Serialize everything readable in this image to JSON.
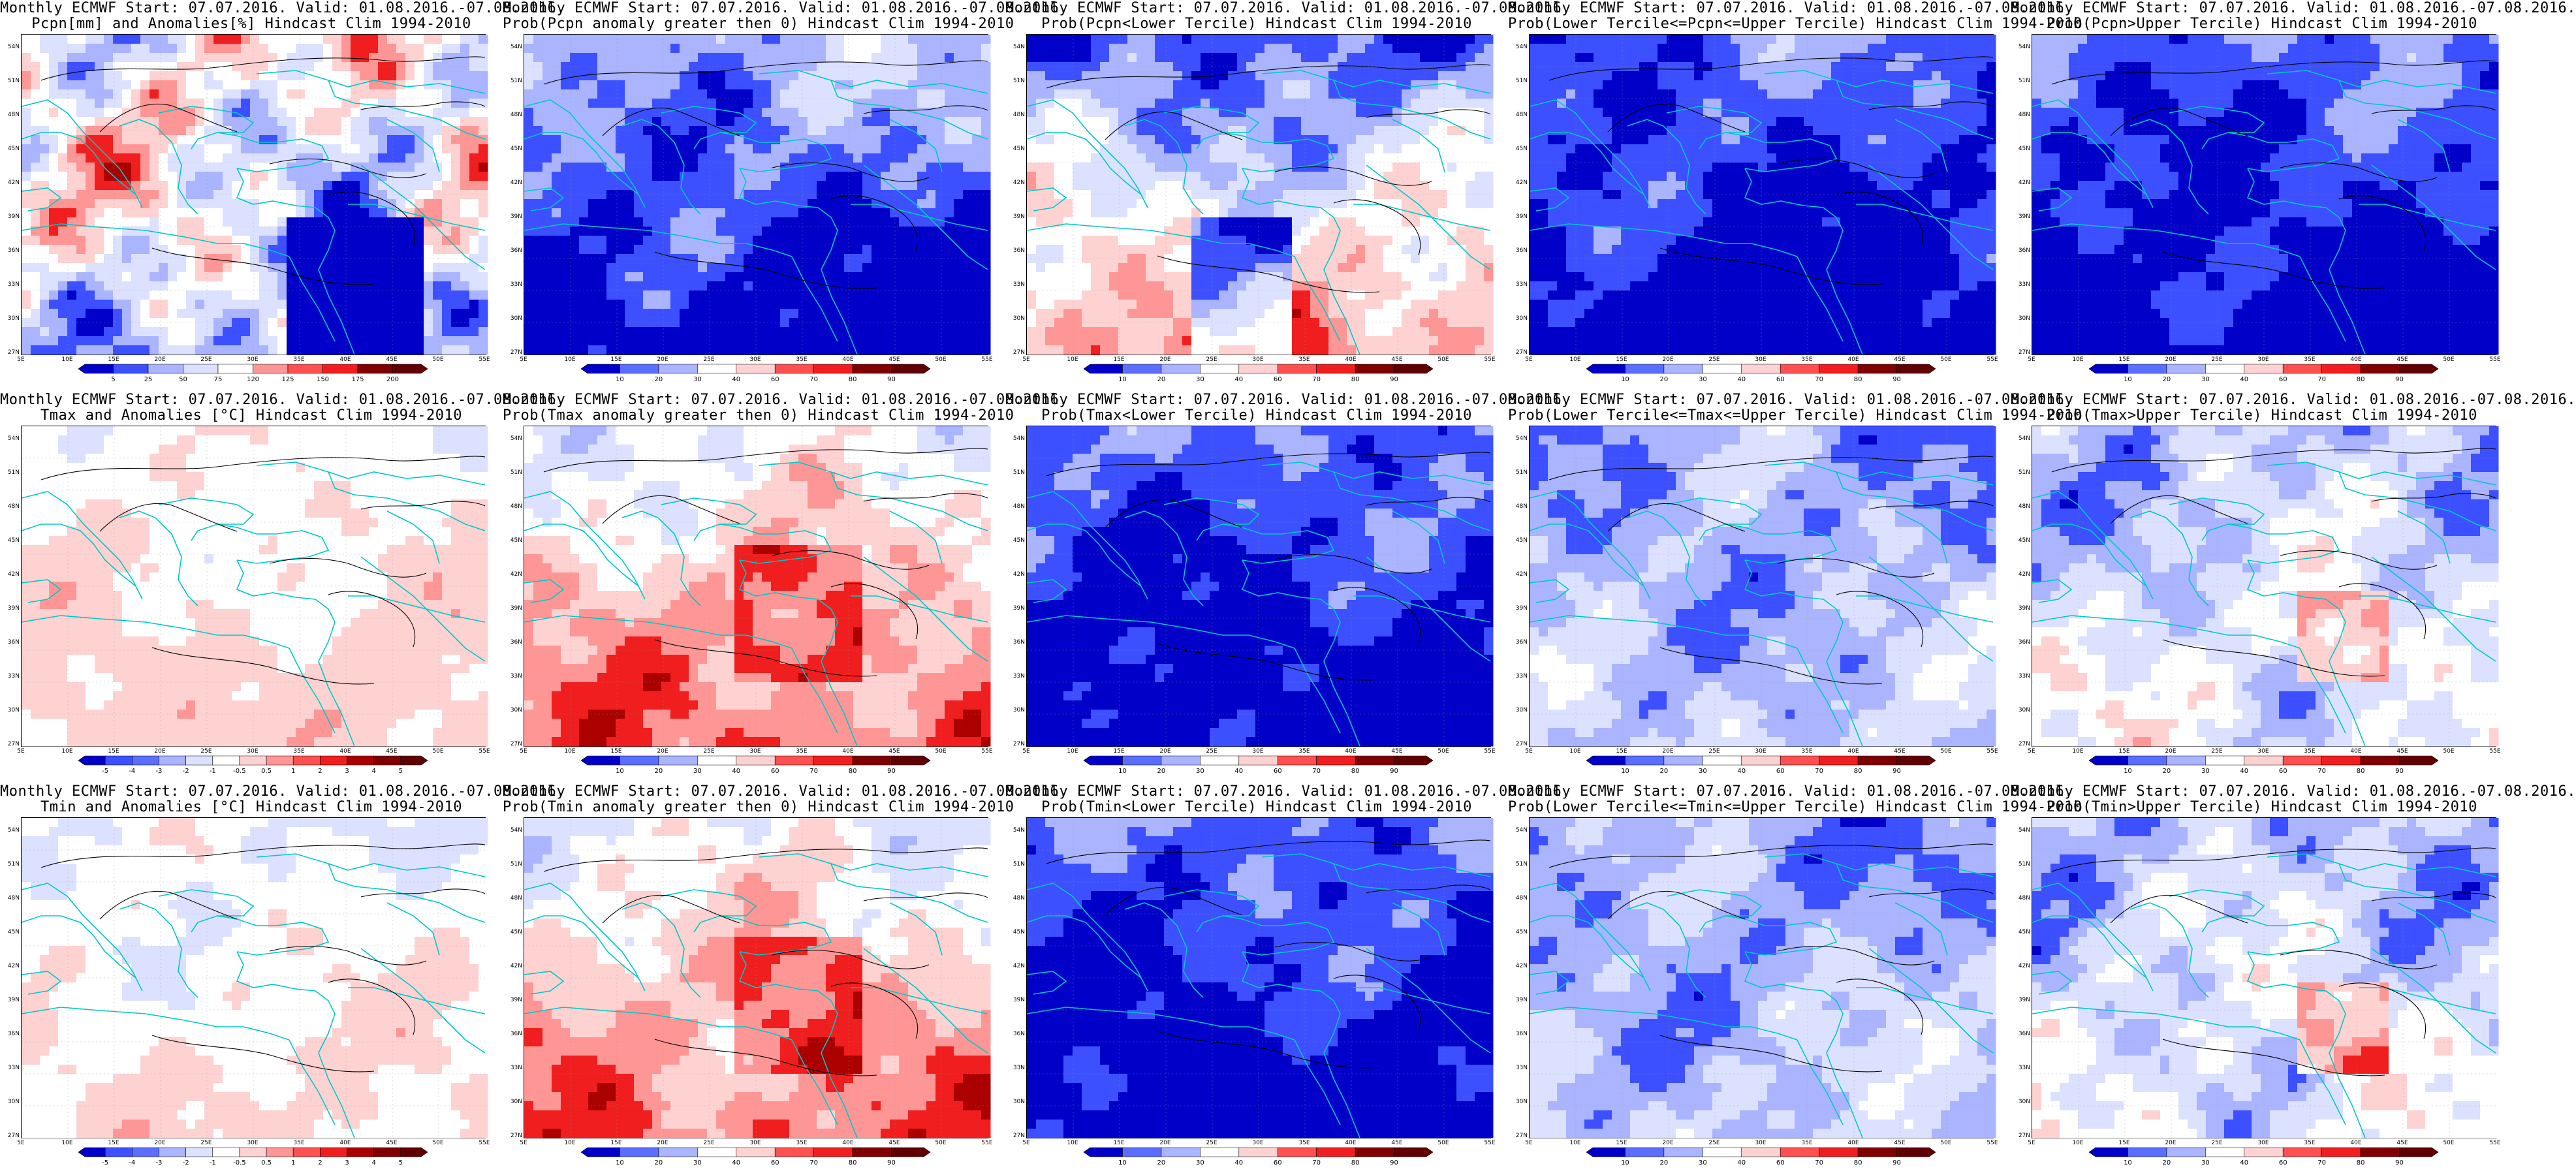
{
  "figure": {
    "panels": [
      {
        "id": "pcpn-anom",
        "title_line1": "Monthly ECMWF Start: 07.07.2016. Valid: 01.08.2016.-07.08.2016.",
        "title_line2": "Pcpn[mm] and Anomalies[%] Hindcast Clim 1994-2010",
        "scheme": "anom",
        "colorbar": [
          "5",
          "25",
          "50",
          "75",
          "120",
          "125",
          "150",
          "175",
          "200"
        ]
      },
      {
        "id": "pcpn-prob-gt0",
        "title_line1": "Monthly ECMWF Start: 07.07.2016. Valid: 01.08.2016.-07.08.2016.",
        "title_line2": "Prob(Pcpn anomaly greater then 0) Hindcast Clim 1994-2010",
        "scheme": "dryblue",
        "colorbar": [
          "10",
          "20",
          "30",
          "40",
          "60",
          "70",
          "80",
          "90"
        ]
      },
      {
        "id": "pcpn-prob-lower",
        "title_line1": "Monthly ECMWF Start: 07.07.2016. Valid: 01.08.2016.-07.08.2016.",
        "title_line2": "Prob(Pcpn<Lower Tercile) Hindcast Clim 1994-2010",
        "scheme": "dryred",
        "colorbar": [
          "10",
          "20",
          "30",
          "40",
          "60",
          "70",
          "80",
          "90"
        ]
      },
      {
        "id": "pcpn-prob-middle",
        "title_line1": "Monthly ECMWF Start: 07.07.2016. Valid: 01.08.2016.-07.08.2016.",
        "title_line2": "Prob(Lower Tercile<=Pcpn<=Upper Tercile) Hindcast Clim 1994-2010",
        "scheme": "deepblue",
        "colorbar": [
          "10",
          "20",
          "30",
          "40",
          "60",
          "70",
          "80",
          "90"
        ]
      },
      {
        "id": "pcpn-prob-upper",
        "title_line1": "Monthly ECMWF Start: 07.07.2016. Valid: 01.08.2016.-07.08.2016.",
        "title_line2": "Prob(Pcpn>Upper Tercile) Hindcast Clim 1994-2010",
        "scheme": "deepblue",
        "colorbar": [
          "10",
          "20",
          "30",
          "40",
          "60",
          "70",
          "80",
          "90"
        ]
      },
      {
        "id": "tmax-anom",
        "title_line1": "Monthly ECMWF Start: 07.07.2016. Valid: 01.08.2016.-07.08.2016.",
        "title_line2": "Tmax and Anomalies [°C] Hindcast Clim 1994-2010",
        "scheme": "warmlight",
        "colorbar": [
          "-5",
          "-4",
          "-3",
          "-2",
          "-1",
          "-0.5",
          "0.5",
          "1",
          "2",
          "3",
          "4",
          "5"
        ]
      },
      {
        "id": "tmax-prob-gt0",
        "title_line1": "Monthly ECMWF Start: 07.07.2016. Valid: 01.08.2016.-07.08.2016.",
        "title_line2": "Prob(Tmax anomaly greater then 0) Hindcast Clim 1994-2010",
        "scheme": "warmred",
        "colorbar": [
          "10",
          "20",
          "30",
          "40",
          "60",
          "70",
          "80",
          "90"
        ]
      },
      {
        "id": "tmax-prob-lower",
        "title_line1": "Monthly ECMWF Start: 07.07.2016. Valid: 01.08.2016.-07.08.2016.",
        "title_line2": "Prob(Tmax<Lower Tercile) Hindcast Clim 1994-2010",
        "scheme": "deepblue",
        "colorbar": [
          "10",
          "20",
          "30",
          "40",
          "60",
          "70",
          "80",
          "90"
        ]
      },
      {
        "id": "tmax-prob-middle",
        "title_line1": "Monthly ECMWF Start: 07.07.2016. Valid: 01.08.2016.-07.08.2016.",
        "title_line2": "Prob(Lower Tercile<=Tmax<=Upper Tercile) Hindcast Clim 1994-2010",
        "scheme": "midblue",
        "colorbar": [
          "10",
          "20",
          "30",
          "40",
          "60",
          "70",
          "80",
          "90"
        ]
      },
      {
        "id": "tmax-prob-upper",
        "title_line1": "Monthly ECMWF Start: 07.07.2016. Valid: 01.08.2016.-07.08.2016.",
        "title_line2": "Prob(Tmax>Upper Tercile) Hindcast Clim 1994-2010",
        "scheme": "mixed",
        "colorbar": [
          "10",
          "20",
          "30",
          "40",
          "60",
          "70",
          "80",
          "90"
        ]
      },
      {
        "id": "tmin-anom",
        "title_line1": "Monthly ECMWF Start: 07.07.2016. Valid: 01.08.2016.-07.08.2016.",
        "title_line2": "Tmin and Anomalies [°C] Hindcast Clim 1994-2010",
        "scheme": "warmpale",
        "colorbar": [
          "-5",
          "-4",
          "-3",
          "-2",
          "-1",
          "-0.5",
          "0.5",
          "1",
          "2",
          "3",
          "4",
          "5"
        ]
      },
      {
        "id": "tmin-prob-gt0",
        "title_line1": "Monthly ECMWF Start: 07.07.2016. Valid: 01.08.2016.-07.08.2016.",
        "title_line2": "Prob(Tmin anomaly greater then 0) Hindcast Clim 1994-2010",
        "scheme": "warmred",
        "colorbar": [
          "10",
          "20",
          "30",
          "40",
          "60",
          "70",
          "80",
          "90"
        ]
      },
      {
        "id": "tmin-prob-lower",
        "title_line1": "Monthly ECMWF Start: 07.07.2016. Valid: 01.08.2016.-07.08.2016.",
        "title_line2": "Prob(Tmin<Lower Tercile) Hindcast Clim 1994-2010",
        "scheme": "deepblue",
        "colorbar": [
          "10",
          "20",
          "30",
          "40",
          "60",
          "70",
          "80",
          "90"
        ]
      },
      {
        "id": "tmin-prob-middle",
        "title_line1": "Monthly ECMWF Start: 07.07.2016. Valid: 01.08.2016.-07.08.2016.",
        "title_line2": "Prob(Lower Tercile<=Tmin<=Upper Tercile) Hindcast Clim 1994-2010",
        "scheme": "midblue",
        "colorbar": [
          "10",
          "20",
          "30",
          "40",
          "60",
          "70",
          "80",
          "90"
        ]
      },
      {
        "id": "tmin-prob-upper",
        "title_line1": "Monthly ECMWF Start: 07.07.2016. Valid: 01.08.2016.-07.08.2016.",
        "title_line2": "Prob(Tmin>Upper Tercile) Hindcast Clim 1994-2010",
        "scheme": "mixed",
        "colorbar": [
          "10",
          "20",
          "30",
          "40",
          "60",
          "70",
          "80",
          "90"
        ]
      }
    ],
    "lat_labels": [
      "54N",
      "51N",
      "48N",
      "45N",
      "42N",
      "39N",
      "36N",
      "33N",
      "30N",
      "27N"
    ],
    "lon_labels": [
      "5E",
      "10E",
      "15E",
      "20E",
      "25E",
      "30E",
      "35E",
      "40E",
      "45E",
      "50E",
      "55E"
    ],
    "colors": {
      "deep_blue": "#0000c8",
      "blue": "#3c50ff",
      "light_blue": "#aab4ff",
      "pale_blue": "#dce1ff",
      "white": "#ffffff",
      "pale_red": "#ffd2d2",
      "light_red": "#ff9696",
      "red": "#f01e1e",
      "deep_red": "#aa0000",
      "coast": "#00c8c8",
      "contour": "#000000"
    }
  }
}
